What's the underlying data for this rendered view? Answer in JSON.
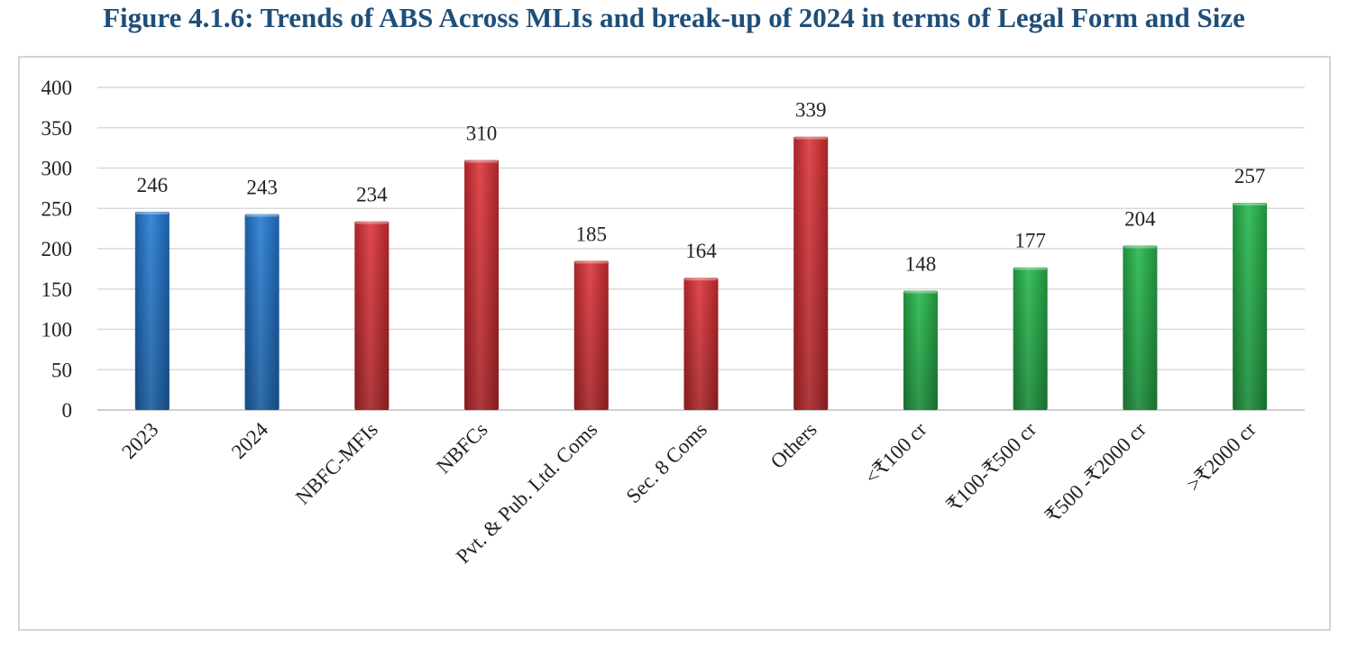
{
  "title": "Figure 4.1.6: Trends of ABS Across MLIs and break-up of 2024 in terms of Legal Form and Size",
  "colors": {
    "title": "#1f4e79",
    "blue": "#2e75c0",
    "red": "#c6343a",
    "green": "#2aa84a",
    "grid": "#d9d9d9"
  },
  "chart_data": {
    "type": "bar",
    "title": "",
    "xlabel": "",
    "ylabel": "",
    "ylim": [
      0,
      400
    ],
    "yticks": [
      0,
      50,
      100,
      150,
      200,
      250,
      300,
      350,
      400
    ],
    "grid": true,
    "categories": [
      "2023",
      "2024",
      "NBFC-MFIs",
      "NBFCs",
      "Pvt. & Pub. Ltd. Coms",
      "Sec. 8 Coms",
      "Others",
      "<₹100 cr",
      "₹100-₹500 cr",
      "₹500 -₹2000 cr",
      ">₹2000 cr"
    ],
    "values": [
      246,
      243,
      234,
      310,
      185,
      164,
      339,
      148,
      177,
      204,
      257
    ],
    "bar_colors": [
      "blue",
      "blue",
      "red",
      "red",
      "red",
      "red",
      "red",
      "green",
      "green",
      "green",
      "green"
    ]
  }
}
